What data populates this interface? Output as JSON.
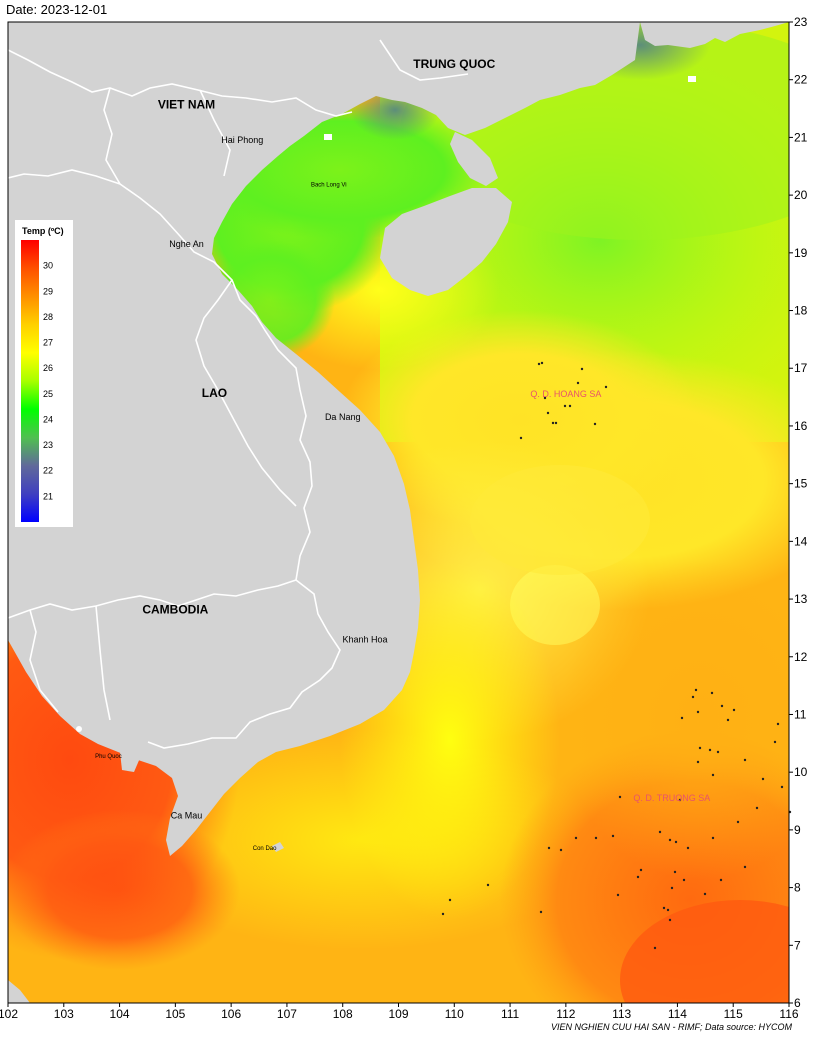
{
  "date_label": "Date: 2023-12-01",
  "credit": "VIEN NGHIEN CUU HAI SAN - RIMF; Data source: HYCOM",
  "map": {
    "lon_range": [
      102,
      116
    ],
    "lat_range": [
      6,
      23
    ],
    "lon_ticks": [
      "102",
      "103",
      "104",
      "105",
      "106",
      "107",
      "108",
      "109",
      "110",
      "111",
      "112",
      "113",
      "114",
      "115",
      "116"
    ],
    "lat_ticks": [
      "6",
      "7",
      "8",
      "9",
      "10",
      "11",
      "12",
      "13",
      "14",
      "15",
      "16",
      "17",
      "18",
      "19",
      "20",
      "21",
      "22",
      "23"
    ],
    "country_labels": [
      {
        "text": "TRUNG QUOC",
        "lon": 110.0,
        "lat": 22.2
      },
      {
        "text": "VIET NAM",
        "lon": 105.2,
        "lat": 21.5
      },
      {
        "text": "LAO",
        "lon": 105.7,
        "lat": 16.5
      },
      {
        "text": "CAMBODIA",
        "lon": 105.0,
        "lat": 12.75
      }
    ],
    "place_labels": [
      {
        "text": "Hai Phong",
        "lon": 106.2,
        "lat": 20.9
      },
      {
        "text": "Nghe An",
        "lon": 105.2,
        "lat": 19.1
      },
      {
        "text": "Da Nang",
        "lon": 108.0,
        "lat": 16.1
      },
      {
        "text": "Khanh Hoa",
        "lon": 108.4,
        "lat": 12.25
      },
      {
        "text": "Ca Mau",
        "lon": 105.2,
        "lat": 9.2
      }
    ],
    "island_labels": [
      {
        "text": "Bach Long Vi",
        "lon": 107.75,
        "lat": 20.15
      },
      {
        "text": "Phu Quoc",
        "lon": 103.8,
        "lat": 10.25
      },
      {
        "text": "Con Dao",
        "lon": 106.6,
        "lat": 8.65
      }
    ],
    "archipelago_labels": [
      {
        "text": "Q. D. HOANG SA",
        "lon": 112.0,
        "lat": 16.5
      },
      {
        "text": "Q. D. TRUONG SA",
        "lon": 113.9,
        "lat": 9.5
      }
    ]
  },
  "legend": {
    "title": "Temp (ºC)",
    "min": 20,
    "max": 31,
    "ticks": [
      "21",
      "22",
      "23",
      "24",
      "25",
      "26",
      "27",
      "28",
      "29",
      "30"
    ],
    "colors": [
      "#0000ff",
      "#4040c0",
      "#606a9a",
      "#50c050",
      "#00ff00",
      "#a8ff00",
      "#ffff00",
      "#ffd000",
      "#ff9000",
      "#ff5000",
      "#ff0000"
    ]
  }
}
